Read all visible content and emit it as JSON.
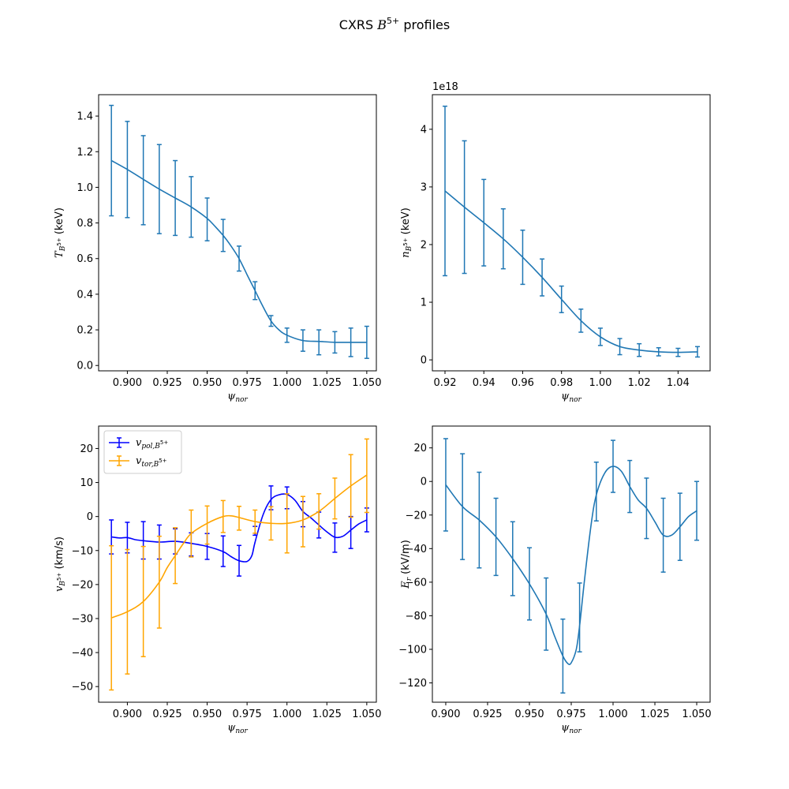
{
  "title": {
    "prefix": "CXRS ",
    "sym": "B",
    "sup": "5+",
    "suffix": " profiles"
  },
  "chart_data": [
    {
      "type": "line",
      "id": "temperature",
      "xlabel": {
        "sym": "ψ",
        "sub": "nor"
      },
      "ylabel": {
        "sym": "T",
        "sub": "B",
        "subsup": "5+",
        "rest": " (keV)"
      },
      "xlim": [
        0.882,
        1.056
      ],
      "ylim": [
        -0.03,
        1.52
      ],
      "xticks": [
        0.9,
        0.925,
        0.95,
        0.975,
        1.0,
        1.025,
        1.05
      ],
      "xtick_labels": [
        "0.900",
        "0.925",
        "0.950",
        "0.975",
        "1.000",
        "1.025",
        "1.050"
      ],
      "yticks": [
        0.0,
        0.2,
        0.4,
        0.6,
        0.8,
        1.0,
        1.2,
        1.4
      ],
      "ytick_labels": [
        "0.0",
        "0.2",
        "0.4",
        "0.6",
        "0.8",
        "1.0",
        "1.2",
        "1.4"
      ],
      "offset_text": "",
      "series": [
        {
          "color": "#1f77b4",
          "x": [
            0.89,
            0.9,
            0.91,
            0.92,
            0.93,
            0.94,
            0.95,
            0.96,
            0.97,
            0.98,
            0.99,
            1.0,
            1.01,
            1.02,
            1.03,
            1.04,
            1.05
          ],
          "y": [
            1.15,
            1.1,
            1.04,
            0.99,
            0.94,
            0.89,
            0.82,
            0.73,
            0.6,
            0.42,
            0.25,
            0.17,
            0.14,
            0.13,
            0.13,
            0.13,
            0.13
          ],
          "err": [
            0.31,
            0.27,
            0.25,
            0.25,
            0.21,
            0.17,
            0.12,
            0.09,
            0.07,
            0.05,
            0.03,
            0.04,
            0.06,
            0.07,
            0.06,
            0.08,
            0.09
          ],
          "curve_x": [
            0.89,
            0.9,
            0.91,
            0.92,
            0.93,
            0.94,
            0.95,
            0.955,
            0.96,
            0.965,
            0.97,
            0.975,
            0.98,
            0.985,
            0.99,
            0.995,
            1.0,
            1.01,
            1.02,
            1.03,
            1.04,
            1.05
          ],
          "curve_y": [
            1.15,
            1.1,
            1.045,
            0.99,
            0.94,
            0.89,
            0.825,
            0.78,
            0.73,
            0.67,
            0.6,
            0.51,
            0.42,
            0.33,
            0.25,
            0.2,
            0.17,
            0.14,
            0.135,
            0.13,
            0.13,
            0.13
          ]
        }
      ]
    },
    {
      "type": "line",
      "id": "density",
      "xlabel": {
        "sym": "ψ",
        "sub": "nor"
      },
      "ylabel": {
        "sym": "n",
        "sub": "B",
        "subsup": "5+",
        "rest": " (keV)"
      },
      "xlim": [
        0.9135,
        1.0565
      ],
      "ylim": [
        -0.19,
        4.6
      ],
      "xticks": [
        0.92,
        0.94,
        0.96,
        0.98,
        1.0,
        1.02,
        1.04
      ],
      "xtick_labels": [
        "0.92",
        "0.94",
        "0.96",
        "0.98",
        "1.00",
        "1.02",
        "1.04"
      ],
      "yticks": [
        0,
        1,
        2,
        3,
        4
      ],
      "ytick_labels": [
        "0",
        "1",
        "2",
        "3",
        "4"
      ],
      "offset_text": "1e18",
      "series": [
        {
          "color": "#1f77b4",
          "x": [
            0.92,
            0.93,
            0.94,
            0.95,
            0.96,
            0.97,
            0.98,
            0.99,
            1.0,
            1.01,
            1.02,
            1.03,
            1.04,
            1.05
          ],
          "y": [
            2.93,
            2.65,
            2.38,
            2.1,
            1.78,
            1.43,
            1.05,
            0.68,
            0.4,
            0.23,
            0.17,
            0.14,
            0.13,
            0.14
          ],
          "err": [
            1.47,
            1.15,
            0.75,
            0.52,
            0.47,
            0.32,
            0.23,
            0.2,
            0.15,
            0.14,
            0.11,
            0.07,
            0.07,
            0.09
          ],
          "curve_x": [
            0.92,
            0.93,
            0.94,
            0.95,
            0.96,
            0.97,
            0.98,
            0.99,
            1.0,
            1.01,
            1.02,
            1.03,
            1.04,
            1.05
          ],
          "curve_y": [
            2.93,
            2.65,
            2.38,
            2.1,
            1.78,
            1.43,
            1.05,
            0.68,
            0.4,
            0.23,
            0.17,
            0.14,
            0.13,
            0.14
          ]
        }
      ]
    },
    {
      "type": "line",
      "id": "velocity",
      "xlabel": {
        "sym": "ψ",
        "sub": "nor"
      },
      "ylabel": {
        "sym": "v",
        "sub": "B",
        "subsup": "5+",
        "rest": " (km/s)"
      },
      "xlim": [
        0.882,
        1.056
      ],
      "ylim": [
        -54.6,
        26.6
      ],
      "xticks": [
        0.9,
        0.925,
        0.95,
        0.975,
        1.0,
        1.025,
        1.05
      ],
      "xtick_labels": [
        "0.900",
        "0.925",
        "0.950",
        "0.975",
        "1.000",
        "1.025",
        "1.050"
      ],
      "yticks": [
        -50,
        -40,
        -30,
        -20,
        -10,
        0,
        10,
        20
      ],
      "ytick_labels": [
        "−50",
        "−40",
        "−30",
        "−20",
        "−10",
        "0",
        "10",
        "20"
      ],
      "offset_text": "",
      "legend": {
        "placement": "upper-left"
      },
      "series": [
        {
          "name": {
            "sym": "v",
            "sub": "pol,B",
            "subsup": "5+"
          },
          "color": "#0000ff",
          "x": [
            0.89,
            0.9,
            0.91,
            0.92,
            0.93,
            0.94,
            0.95,
            0.96,
            0.97,
            0.98,
            0.99,
            1.0,
            1.01,
            1.02,
            1.03,
            1.04,
            1.05
          ],
          "y": [
            -6,
            -6.2,
            -7,
            -7.5,
            -7.3,
            -8.2,
            -8.8,
            -10.2,
            -13,
            -4.2,
            5.5,
            5.5,
            0.7,
            -2.5,
            -6.2,
            -4.7,
            -1
          ],
          "err": [
            5,
            4.5,
            5.5,
            5,
            3.7,
            3.4,
            3.8,
            4.5,
            4.5,
            1.3,
            3.5,
            3.2,
            3.7,
            3.8,
            4.3,
            4.7,
            3.5
          ],
          "curve_x": [
            0.89,
            0.895,
            0.9,
            0.905,
            0.91,
            0.92,
            0.93,
            0.94,
            0.95,
            0.96,
            0.965,
            0.97,
            0.975,
            0.978,
            0.98,
            0.985,
            0.99,
            0.995,
            1.0,
            1.005,
            1.01,
            1.015,
            1.02,
            1.025,
            1.03,
            1.035,
            1.04,
            1.045,
            1.05
          ],
          "curve_y": [
            -6,
            -6.3,
            -6.2,
            -6.8,
            -7.1,
            -7.5,
            -7.3,
            -7.9,
            -8.8,
            -10.3,
            -11.8,
            -13,
            -13.2,
            -11.5,
            -7.5,
            0.5,
            5,
            6.4,
            6.5,
            4.8,
            1.5,
            -0.4,
            -2.5,
            -4.5,
            -6.1,
            -5.8,
            -4,
            -2.2,
            -1
          ]
        },
        {
          "name": {
            "sym": "v",
            "sub": "tor,B",
            "subsup": "5+"
          },
          "color": "#ffa500",
          "x": [
            0.89,
            0.9,
            0.91,
            0.92,
            0.93,
            0.94,
            0.95,
            0.96,
            0.97,
            0.98,
            0.99,
            1.0,
            1.01,
            1.02,
            1.03,
            1.04,
            1.05
          ],
          "y": [
            -29.8,
            -28,
            -25,
            -19.3,
            -11.5,
            -5,
            -2.5,
            0,
            -0.5,
            -1.5,
            -2,
            -2,
            -1.5,
            1.5,
            5.3,
            9,
            12
          ],
          "err": [
            21.2,
            18.3,
            16.2,
            13.5,
            8.2,
            6.9,
            5.6,
            4.7,
            3.5,
            3.4,
            4.9,
            8.7,
            7.4,
            5.2,
            6,
            9.2,
            10.8
          ],
          "curve_x": [
            0.89,
            0.9,
            0.91,
            0.92,
            0.925,
            0.93,
            0.935,
            0.94,
            0.95,
            0.96,
            0.965,
            0.97,
            0.98,
            0.99,
            1.0,
            1.01,
            1.02,
            1.03,
            1.04,
            1.05
          ],
          "curve_y": [
            -29.8,
            -28,
            -25,
            -19.3,
            -15,
            -11.5,
            -8,
            -5,
            -2,
            0,
            0.2,
            -0.3,
            -1.5,
            -2,
            -2,
            -1,
            1.5,
            5.3,
            9,
            12.2
          ]
        }
      ]
    },
    {
      "type": "line",
      "id": "efield",
      "xlabel": {
        "sym": "ψ",
        "sub": "nor"
      },
      "ylabel": {
        "sym": "E",
        "sub": "r",
        "subsup": "",
        "rest": " (kV/m)"
      },
      "xlim": [
        0.892,
        1.058
      ],
      "ylim": [
        -131.5,
        33
      ],
      "xticks": [
        0.9,
        0.925,
        0.95,
        0.975,
        1.0,
        1.025,
        1.05
      ],
      "xtick_labels": [
        "0.900",
        "0.925",
        "0.950",
        "0.975",
        "1.000",
        "1.025",
        "1.050"
      ],
      "yticks": [
        -120,
        -100,
        -80,
        -60,
        -40,
        -20,
        0,
        20
      ],
      "ytick_labels": [
        "−120",
        "−100",
        "−80",
        "−60",
        "−40",
        "−20",
        "0",
        "20"
      ],
      "offset_text": "",
      "series": [
        {
          "color": "#1f77b4",
          "x": [
            0.9,
            0.91,
            0.92,
            0.93,
            0.94,
            0.95,
            0.96,
            0.97,
            0.98,
            0.99,
            1.0,
            1.01,
            1.02,
            1.03,
            1.04,
            1.05
          ],
          "y": [
            -2,
            -15,
            -23,
            -33,
            -46,
            -61,
            -79,
            -104,
            -81,
            -6,
            9,
            -3,
            -16,
            -32,
            -27,
            -17.5
          ],
          "err": [
            27.5,
            31.5,
            28.5,
            23,
            22,
            21.5,
            21.5,
            22,
            20.5,
            17.5,
            15.5,
            15.5,
            18,
            22,
            20,
            17.5
          ],
          "curve_x": [
            0.9,
            0.91,
            0.92,
            0.93,
            0.94,
            0.95,
            0.96,
            0.965,
            0.97,
            0.973,
            0.975,
            0.978,
            0.98,
            0.983,
            0.987,
            0.99,
            0.995,
            1.0,
            1.005,
            1.01,
            1.015,
            1.02,
            1.025,
            1.03,
            1.035,
            1.04,
            1.045,
            1.05
          ],
          "curve_y": [
            -2,
            -15,
            -23,
            -33,
            -46,
            -61,
            -79,
            -92,
            -104,
            -108.5,
            -108,
            -100,
            -86,
            -58,
            -25,
            -8,
            5,
            9,
            6,
            -3,
            -11,
            -16,
            -24,
            -32,
            -32,
            -27,
            -21,
            -17.5
          ]
        }
      ]
    }
  ]
}
